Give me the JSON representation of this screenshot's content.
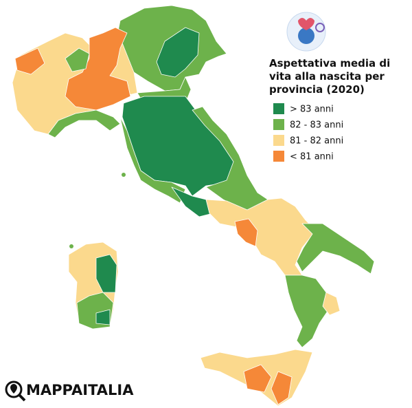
{
  "map": {
    "title_lines": [
      "Aspettativa media di",
      "vita alla nascita per",
      "provincia (2020)"
    ],
    "legend": [
      {
        "label": "> 83 anni",
        "color": "#1f8a4e"
      },
      {
        "label": "82 - 83 anni",
        "color": "#6db24b"
      },
      {
        "label": "81 - 82 anni",
        "color": "#fbd98d"
      },
      {
        "label": "< 81 anni",
        "color": "#f58838"
      }
    ],
    "brand": "MAPPAITALIA"
  }
}
